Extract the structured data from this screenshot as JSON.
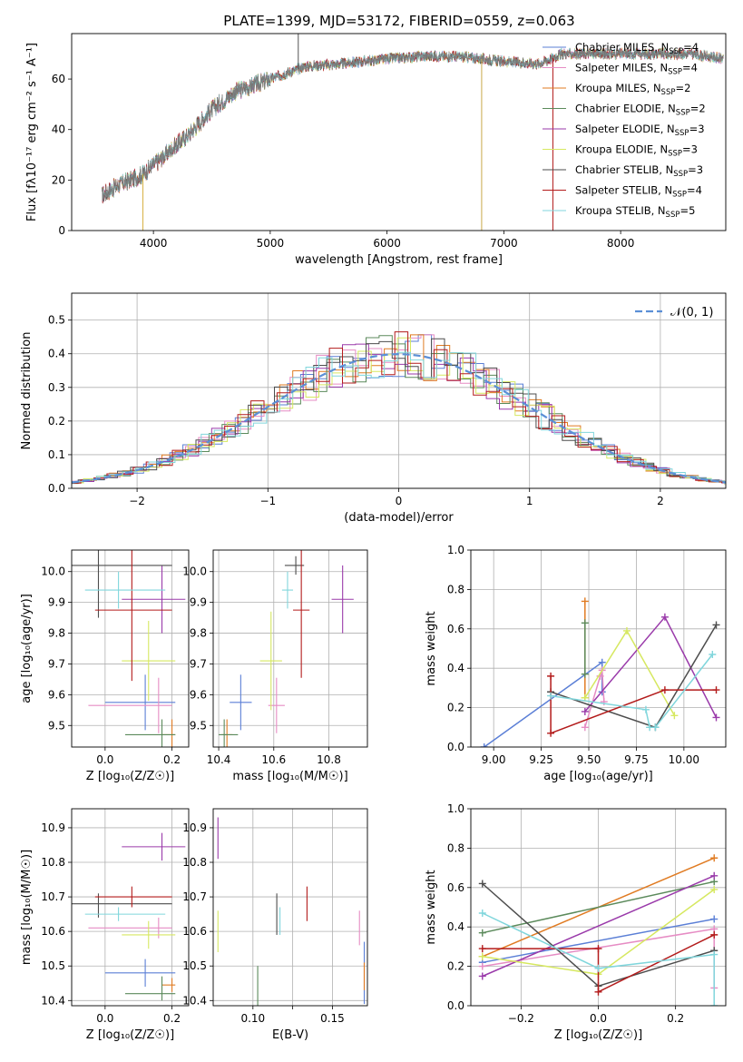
{
  "figure_title": "PLATE=1399, MJD=53172, FIBERID=0559, z=0.063",
  "colors": {
    "Chabrier MILES": "#5b7fd6",
    "Salpeter MILES": "#e68cc4",
    "Kroupa MILES": "#e07b22",
    "Chabrier ELODIE": "#5b8a5b",
    "Salpeter ELODIE": "#9a3aaa",
    "Kroupa ELODIE": "#d6e860",
    "Chabrier STELIB": "#4d4d4d",
    "Salpeter STELIB": "#b31b1b",
    "Kroupa STELIB": "#80d6dc",
    "gaussian": "#5b8fd6",
    "spectrum": "#777777"
  },
  "legend_models": [
    {
      "label": "Chabrier MILES, N",
      "sub": "SSP",
      "tail": "=4",
      "color": "#5b7fd6"
    },
    {
      "label": "Salpeter MILES, N",
      "sub": "SSP",
      "tail": "=4",
      "color": "#e68cc4"
    },
    {
      "label": "Kroupa MILES, N",
      "sub": "SSP",
      "tail": "=2",
      "color": "#e07b22"
    },
    {
      "label": "Chabrier ELODIE, N",
      "sub": "SSP",
      "tail": "=2",
      "color": "#5b8a5b"
    },
    {
      "label": "Salpeter ELODIE, N",
      "sub": "SSP",
      "tail": "=3",
      "color": "#9a3aaa"
    },
    {
      "label": "Kroupa ELODIE, N",
      "sub": "SSP",
      "tail": "=3",
      "color": "#d6e860"
    },
    {
      "label": "Chabrier STELIB, N",
      "sub": "SSP",
      "tail": "=3",
      "color": "#4d4d4d"
    },
    {
      "label": "Salpeter STELIB, N",
      "sub": "SSP",
      "tail": "=4",
      "color": "#b31b1b"
    },
    {
      "label": "Kroupa STELIB, N",
      "sub": "SSP",
      "tail": "=5",
      "color": "#80d6dc"
    }
  ],
  "chart_data": [
    {
      "id": "spectrum",
      "type": "line",
      "xlabel": "wavelength [Angstrom, rest frame]",
      "ylabel": "Flux [fλ10⁻¹⁷ erg cm⁻² s⁻¹ A⁻¹]",
      "xlim": [
        3300,
        8900
      ],
      "ylim": [
        0,
        78
      ],
      "xticks": [
        4000,
        5000,
        6000,
        7000,
        8000
      ],
      "yticks": [
        0,
        20,
        40,
        60
      ],
      "x_range": [
        3560,
        8880
      ],
      "continuum_knots": [
        [
          3560,
          14
        ],
        [
          3700,
          18
        ],
        [
          3900,
          22
        ],
        [
          4000,
          26
        ],
        [
          4100,
          30
        ],
        [
          4300,
          38
        ],
        [
          4500,
          48
        ],
        [
          4700,
          55
        ],
        [
          5000,
          60
        ],
        [
          5300,
          65
        ],
        [
          5600,
          66
        ],
        [
          5800,
          67
        ],
        [
          6000,
          68
        ],
        [
          6300,
          69
        ],
        [
          6600,
          69
        ],
        [
          7000,
          67
        ],
        [
          7300,
          66
        ],
        [
          7500,
          70
        ],
        [
          7700,
          70
        ],
        [
          8000,
          70
        ],
        [
          8300,
          70
        ],
        [
          8600,
          70
        ],
        [
          8880,
          68
        ]
      ],
      "spikes": [
        {
          "x": 3910,
          "y": 0
        },
        {
          "x": 5240,
          "y": 78
        },
        {
          "x": 6810,
          "y": 0
        },
        {
          "x": 7420,
          "y": 0
        }
      ],
      "legend_position": "upper-right"
    },
    {
      "id": "residuals",
      "type": "histogram",
      "xlabel": "(data-model)/error",
      "ylabel": "Normed distribution",
      "xlim": [
        -2.5,
        2.5
      ],
      "ylim": [
        0,
        0.58
      ],
      "xticks": [
        -2,
        -1,
        0,
        1,
        2
      ],
      "yticks": [
        0,
        0.1,
        0.2,
        0.3,
        0.4,
        0.5
      ],
      "bin_width": 0.1,
      "gaussian_label": "𝒩(0, 1)",
      "legend_position": "upper-right",
      "grid": true
    },
    {
      "id": "age-vs-Z",
      "type": "errorbar",
      "xlabel": "Z [log₁₀(Z/Z☉)]",
      "ylabel": "age  [log₁₀(age/yr)]",
      "xlim": [
        -0.1,
        0.25
      ],
      "ylim": [
        9.43,
        10.07
      ],
      "xticks": [
        0.0,
        0.2
      ],
      "yticks": [
        9.5,
        9.6,
        9.7,
        9.8,
        9.9,
        10.0
      ],
      "points": [
        {
          "model": "Chabrier MILES",
          "x": 0.12,
          "xerr": [
            0.12,
            0.09
          ],
          "y": 9.575,
          "yerr": [
            0.09,
            0.09
          ]
        },
        {
          "model": "Salpeter MILES",
          "x": 0.16,
          "xerr": [
            0.21,
            0.04
          ],
          "y": 9.565,
          "yerr": [
            0.09,
            0.09
          ]
        },
        {
          "model": "Kroupa MILES",
          "x": 0.2,
          "xerr": [
            0.03,
            0.01
          ],
          "y": 9.47,
          "yerr": [
            0.05,
            0.05
          ]
        },
        {
          "model": "Chabrier ELODIE",
          "x": 0.17,
          "xerr": [
            0.11,
            0.04
          ],
          "y": 9.47,
          "yerr": [
            0.05,
            0.05
          ]
        },
        {
          "model": "Salpeter ELODIE",
          "x": 0.17,
          "xerr": [
            0.12,
            0.07
          ],
          "y": 9.91,
          "yerr": [
            0.11,
            0.11
          ]
        },
        {
          "model": "Kroupa ELODIE",
          "x": 0.13,
          "xerr": [
            0.08,
            0.08
          ],
          "y": 9.71,
          "yerr": [
            0.13,
            0.13
          ]
        },
        {
          "model": "Chabrier STELIB",
          "x": -0.02,
          "xerr": [
            0.1,
            0.22
          ],
          "y": 10.02,
          "yerr": [
            0.17,
            0.17
          ]
        },
        {
          "model": "Salpeter STELIB",
          "x": 0.08,
          "xerr": [
            0.11,
            0.12
          ],
          "y": 9.875,
          "yerr": [
            0.23,
            0.23
          ]
        },
        {
          "model": "Kroupa STELIB",
          "x": 0.04,
          "xerr": [
            0.1,
            0.14
          ],
          "y": 9.94,
          "yerr": [
            0.06,
            0.06
          ]
        }
      ],
      "grid": true
    },
    {
      "id": "age-vs-mass",
      "type": "errorbar",
      "xlabel": "mass [log₁₀(M/M☉)]",
      "ylabel": "",
      "xlim": [
        10.38,
        10.94
      ],
      "ylim": [
        9.43,
        10.07
      ],
      "xticks": [
        10.4,
        10.6,
        10.8
      ],
      "yticks": [
        9.5,
        9.6,
        9.7,
        9.8,
        9.9,
        10.0
      ],
      "points": [
        {
          "model": "Chabrier MILES",
          "x": 10.48,
          "xerr": [
            0.04,
            0.04
          ],
          "y": 9.575,
          "yerr": [
            0.09,
            0.09
          ]
        },
        {
          "model": "Salpeter MILES",
          "x": 10.61,
          "xerr": [
            0.03,
            0.03
          ],
          "y": 9.565,
          "yerr": [
            0.09,
            0.09
          ]
        },
        {
          "model": "Kroupa MILES",
          "x": 10.43,
          "xerr": [
            0.02,
            0.02
          ],
          "y": 9.47,
          "yerr": [
            0.05,
            0.05
          ]
        },
        {
          "model": "Chabrier ELODIE",
          "x": 10.42,
          "xerr": [
            0.02,
            0.05
          ],
          "y": 9.47,
          "yerr": [
            0.05,
            0.05
          ]
        },
        {
          "model": "Salpeter ELODIE",
          "x": 10.85,
          "xerr": [
            0.04,
            0.04
          ],
          "y": 9.91,
          "yerr": [
            0.11,
            0.11
          ]
        },
        {
          "model": "Kroupa ELODIE",
          "x": 10.59,
          "xerr": [
            0.04,
            0.04
          ],
          "y": 9.71,
          "yerr": [
            0.16,
            0.16
          ]
        },
        {
          "model": "Chabrier STELIB",
          "x": 10.68,
          "xerr": [
            0.04,
            0.03
          ],
          "y": 10.02,
          "yerr": [
            0.03,
            0.03
          ]
        },
        {
          "model": "Salpeter STELIB",
          "x": 10.7,
          "xerr": [
            0.03,
            0.03
          ],
          "y": 9.875,
          "yerr": [
            0.22,
            0.22
          ]
        },
        {
          "model": "Kroupa STELIB",
          "x": 10.65,
          "xerr": [
            0.02,
            0.02
          ],
          "y": 9.94,
          "yerr": [
            0.06,
            0.06
          ]
        }
      ],
      "grid": true
    },
    {
      "id": "weight-vs-age",
      "type": "line",
      "xlabel": "age  [log₁₀(age/yr)]",
      "ylabel": "mass weight",
      "xlim": [
        8.88,
        10.22
      ],
      "ylim": [
        0,
        1
      ],
      "xticks": [
        9.0,
        9.25,
        9.5,
        9.75,
        10.0
      ],
      "xticklabels": [
        "9.00",
        "9.25",
        "9.50",
        "9.75",
        "10.00"
      ],
      "yticks": [
        0,
        0.2,
        0.4,
        0.6,
        0.8,
        1.0
      ],
      "series": [
        {
          "model": "Chabrier MILES",
          "x": [
            8.95,
            9.57,
            9.57
          ],
          "y": [
            0.0,
            0.43,
            0.28
          ]
        },
        {
          "model": "Salpeter MILES",
          "x": [
            9.48,
            9.56,
            9.57,
            9.58
          ],
          "y": [
            0.1,
            0.36,
            0.39,
            0.23
          ]
        },
        {
          "model": "Kroupa MILES",
          "x": [
            9.48,
            9.48
          ],
          "y": [
            0.25,
            0.74
          ]
        },
        {
          "model": "Chabrier ELODIE",
          "x": [
            9.48,
            9.48
          ],
          "y": [
            0.63,
            0.37
          ]
        },
        {
          "model": "Salpeter ELODIE",
          "x": [
            9.48,
            9.9,
            10.17
          ],
          "y": [
            0.18,
            0.66,
            0.15
          ]
        },
        {
          "model": "Kroupa ELODIE",
          "x": [
            9.48,
            9.7,
            9.95
          ],
          "y": [
            0.25,
            0.59,
            0.16
          ]
        },
        {
          "model": "Chabrier STELIB",
          "x": [
            9.3,
            9.85,
            10.17
          ],
          "y": [
            0.28,
            0.1,
            0.62
          ]
        },
        {
          "model": "Salpeter STELIB",
          "x": [
            9.3,
            9.3,
            9.9,
            10.17
          ],
          "y": [
            0.36,
            0.07,
            0.29,
            0.29
          ]
        },
        {
          "model": "Kroupa STELIB",
          "x": [
            9.3,
            9.8,
            9.82,
            9.85,
            10.15
          ],
          "y": [
            0.26,
            0.19,
            0.1,
            0.1,
            0.47
          ]
        }
      ],
      "grid": true
    },
    {
      "id": "mass-vs-Z",
      "type": "errorbar",
      "xlabel": "Z [log₁₀(Z/Z☉)]",
      "ylabel": "mass [log₁₀(M/M☉)]",
      "xlim": [
        -0.1,
        0.25
      ],
      "ylim": [
        10.385,
        10.955
      ],
      "xticks": [
        0.0,
        0.2
      ],
      "yticks": [
        10.4,
        10.5,
        10.6,
        10.7,
        10.8,
        10.9
      ],
      "points": [
        {
          "model": "Chabrier MILES",
          "x": 0.12,
          "xerr": [
            0.12,
            0.09
          ],
          "y": 10.48,
          "yerr": [
            0.04,
            0.04
          ]
        },
        {
          "model": "Salpeter MILES",
          "x": 0.16,
          "xerr": [
            0.21,
            0.04
          ],
          "y": 10.61,
          "yerr": [
            0.03,
            0.03
          ]
        },
        {
          "model": "Kroupa MILES",
          "x": 0.2,
          "xerr": [
            0.03,
            0.01
          ],
          "y": 10.445,
          "yerr": [
            0.02,
            0.02
          ]
        },
        {
          "model": "Chabrier ELODIE",
          "x": 0.17,
          "xerr": [
            0.11,
            0.04
          ],
          "y": 10.42,
          "yerr": [
            0.02,
            0.05
          ]
        },
        {
          "model": "Salpeter ELODIE",
          "x": 0.17,
          "xerr": [
            0.12,
            0.07
          ],
          "y": 10.845,
          "yerr": [
            0.04,
            0.04
          ]
        },
        {
          "model": "Kroupa ELODIE",
          "x": 0.13,
          "xerr": [
            0.08,
            0.08
          ],
          "y": 10.59,
          "yerr": [
            0.04,
            0.04
          ]
        },
        {
          "model": "Chabrier STELIB",
          "x": -0.02,
          "xerr": [
            0.1,
            0.22
          ],
          "y": 10.68,
          "yerr": [
            0.04,
            0.03
          ]
        },
        {
          "model": "Salpeter STELIB",
          "x": 0.08,
          "xerr": [
            0.11,
            0.12
          ],
          "y": 10.7,
          "yerr": [
            0.03,
            0.03
          ]
        },
        {
          "model": "Kroupa STELIB",
          "x": 0.04,
          "xerr": [
            0.1,
            0.14
          ],
          "y": 10.65,
          "yerr": [
            0.02,
            0.02
          ]
        }
      ],
      "grid": true
    },
    {
      "id": "mass-vs-ebv",
      "type": "errorbar",
      "xlabel": "E(B-V)",
      "ylabel": "",
      "xlim": [
        0.075,
        0.172
      ],
      "ylim": [
        10.385,
        10.955
      ],
      "xticks": [
        0.1,
        0.125,
        0.15
      ],
      "xticklabels": [
        "0.10",
        "",
        "0.15"
      ],
      "yticks": [
        10.4,
        10.5,
        10.6,
        10.7,
        10.8,
        10.9
      ],
      "points": [
        {
          "model": "Chabrier MILES",
          "x": 0.17,
          "xerr": [
            0,
            0
          ],
          "y": 10.48,
          "yerr": [
            0.09,
            0.09
          ]
        },
        {
          "model": "Salpeter MILES",
          "x": 0.167,
          "xerr": [
            0,
            0
          ],
          "y": 10.61,
          "yerr": [
            0.05,
            0.05
          ]
        },
        {
          "model": "Kroupa MILES",
          "x": 0.17,
          "xerr": [
            0,
            0
          ],
          "y": 10.47,
          "yerr": [
            0.04,
            0.04
          ]
        },
        {
          "model": "Chabrier ELODIE",
          "x": 0.103,
          "xerr": [
            0,
            0
          ],
          "y": 10.43,
          "yerr": [
            0.07,
            0.07
          ]
        },
        {
          "model": "Salpeter ELODIE",
          "x": 0.078,
          "xerr": [
            0,
            0
          ],
          "y": 10.87,
          "yerr": [
            0.06,
            0.06
          ]
        },
        {
          "model": "Kroupa ELODIE",
          "x": 0.078,
          "xerr": [
            0,
            0
          ],
          "y": 10.6,
          "yerr": [
            0.06,
            0.06
          ]
        },
        {
          "model": "Chabrier STELIB",
          "x": 0.115,
          "xerr": [
            0,
            0
          ],
          "y": 10.65,
          "yerr": [
            0.06,
            0.06
          ]
        },
        {
          "model": "Salpeter STELIB",
          "x": 0.134,
          "xerr": [
            0,
            0
          ],
          "y": 10.68,
          "yerr": [
            0.05,
            0.05
          ]
        },
        {
          "model": "Kroupa STELIB",
          "x": 0.117,
          "xerr": [
            0,
            0
          ],
          "y": 10.63,
          "yerr": [
            0.04,
            0.04
          ]
        }
      ],
      "grid": true
    },
    {
      "id": "weight-vs-Z",
      "type": "line",
      "xlabel": "Z [log₁₀(Z/Z☉)]",
      "ylabel": "mass weight",
      "xlim": [
        -0.33,
        0.33
      ],
      "ylim": [
        0,
        1
      ],
      "xticks": [
        -0.2,
        0.0,
        0.2
      ],
      "xticklabels": [
        "−0.2",
        "0.0",
        "0.2"
      ],
      "yticks": [
        0,
        0.2,
        0.4,
        0.6,
        0.8,
        1.0
      ],
      "series": [
        {
          "model": "Chabrier MILES",
          "x": [
            -0.3,
            0.3
          ],
          "y": [
            0.22,
            0.44
          ]
        },
        {
          "model": "Salpeter MILES",
          "x": [
            -0.3,
            0.3,
            0.3
          ],
          "y": [
            0.2,
            0.39,
            0.09
          ]
        },
        {
          "model": "Kroupa MILES",
          "x": [
            -0.3,
            0.3
          ],
          "y": [
            0.25,
            0.75
          ]
        },
        {
          "model": "Chabrier ELODIE",
          "x": [
            -0.3,
            0.3
          ],
          "y": [
            0.37,
            0.63
          ]
        },
        {
          "model": "Salpeter ELODIE",
          "x": [
            -0.3,
            0.3
          ],
          "y": [
            0.15,
            0.66
          ]
        },
        {
          "model": "Kroupa ELODIE",
          "x": [
            -0.3,
            0.0,
            0.3
          ],
          "y": [
            0.25,
            0.16,
            0.59
          ]
        },
        {
          "model": "Chabrier STELIB",
          "x": [
            -0.3,
            0.0,
            0.3
          ],
          "y": [
            0.62,
            0.1,
            0.28
          ]
        },
        {
          "model": "Salpeter STELIB",
          "x": [
            -0.3,
            0.0,
            0.0,
            0.3
          ],
          "y": [
            0.29,
            0.29,
            0.07,
            0.36
          ]
        },
        {
          "model": "Kroupa STELIB",
          "x": [
            -0.3,
            0.0,
            0.3,
            0.3
          ],
          "y": [
            0.47,
            0.19,
            0.26,
            0.0
          ]
        }
      ],
      "grid": true
    }
  ]
}
